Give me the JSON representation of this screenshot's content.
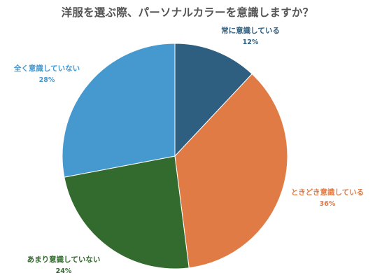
{
  "chart_data": {
    "type": "pie",
    "title": "洋服を選ぶ際、パーソナルカラーを意識しますか？",
    "slices": [
      {
        "label": "常に意識している",
        "value": 12,
        "value_label": "12%",
        "color": "#2e5e80"
      },
      {
        "label": "ときどき意識している",
        "value": 36,
        "value_label": "36%",
        "color": "#e07b45"
      },
      {
        "label": "あまり意識していない",
        "value": 24,
        "value_label": "24%",
        "color": "#336b2f"
      },
      {
        "label": "全く意識していない",
        "value": 28,
        "value_label": "28%",
        "color": "#4599cf"
      }
    ],
    "start_angle": "12 o'clock",
    "direction": "clockwise",
    "legend": "none",
    "labels": "outside"
  }
}
